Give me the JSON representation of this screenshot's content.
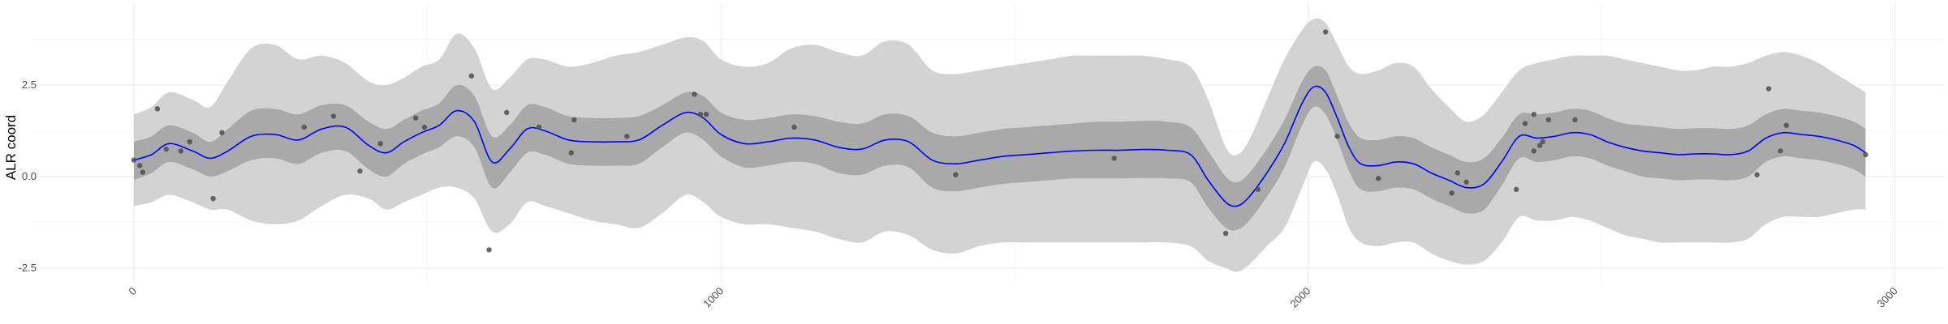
{
  "chart_data": {
    "type": "line",
    "title": "",
    "xlabel": "",
    "ylabel": "ALR coord",
    "xlim": [
      -10,
      3000
    ],
    "ylim": [
      -2.75,
      4.75
    ],
    "x_ticks": [
      0,
      1000,
      2000,
      3000
    ],
    "x_tick_labels": [
      "0",
      "1000",
      "2000",
      "3000"
    ],
    "y_ticks": [
      -2.5,
      0.0,
      2.5
    ],
    "y_tick_labels": [
      "-2.5",
      "0.0",
      "2.5"
    ],
    "grid": true,
    "legend": "none",
    "colors": {
      "mean_line": "#0000ff",
      "inner_band": "#a9a9a9",
      "outer_band": "#d3d3d3",
      "points": "#4d4d4d",
      "grid": "#ebebeb"
    },
    "series": [
      {
        "kind": "mean",
        "x": [
          0,
          30,
          60,
          100,
          130,
          160,
          200,
          240,
          280,
          320,
          360,
          400,
          430,
          460,
          490,
          520,
          550,
          580,
          610,
          640,
          670,
          700,
          740,
          780,
          820,
          860,
          900,
          940,
          970,
          1000,
          1040,
          1080,
          1120,
          1160,
          1200,
          1240,
          1280,
          1320,
          1360,
          1400,
          1440,
          1480,
          1520,
          1560,
          1600,
          1640,
          1680,
          1720,
          1760,
          1800,
          1830,
          1860,
          1880,
          1900,
          1930,
          1960,
          1990,
          2010,
          2030,
          2050,
          2070,
          2090,
          2120,
          2150,
          2180,
          2210,
          2240,
          2270,
          2300,
          2330,
          2360,
          2390,
          2420,
          2450,
          2480,
          2510,
          2540,
          2570,
          2600,
          2630,
          2660,
          2690,
          2720,
          2750,
          2780,
          2810,
          2840,
          2870,
          2900,
          2930,
          2950
        ],
        "y": [
          0.45,
          0.6,
          0.9,
          0.7,
          0.5,
          0.7,
          1.1,
          1.15,
          1.0,
          1.3,
          1.35,
          0.85,
          0.65,
          0.95,
          1.2,
          1.4,
          1.8,
          1.5,
          0.4,
          0.75,
          1.3,
          1.25,
          1.0,
          0.95,
          0.95,
          1.0,
          1.4,
          1.75,
          1.6,
          1.15,
          0.9,
          0.95,
          1.05,
          1.0,
          0.8,
          0.75,
          1.0,
          0.95,
          0.45,
          0.35,
          0.45,
          0.55,
          0.6,
          0.65,
          0.7,
          0.72,
          0.72,
          0.74,
          0.72,
          0.6,
          -0.1,
          -0.7,
          -0.8,
          -0.55,
          0.1,
          0.9,
          2.0,
          2.45,
          2.3,
          1.6,
          0.8,
          0.35,
          0.3,
          0.4,
          0.35,
          0.1,
          -0.1,
          -0.3,
          -0.2,
          0.4,
          1.1,
          1.05,
          1.1,
          1.2,
          1.15,
          0.95,
          0.8,
          0.7,
          0.65,
          0.6,
          0.62,
          0.62,
          0.6,
          0.7,
          1.05,
          1.2,
          1.15,
          1.1,
          1.0,
          0.85,
          0.65
        ]
      },
      {
        "kind": "inner_band",
        "x": [
          0,
          30,
          60,
          100,
          130,
          160,
          200,
          240,
          280,
          320,
          360,
          400,
          430,
          460,
          490,
          520,
          550,
          580,
          610,
          640,
          670,
          700,
          740,
          780,
          820,
          860,
          900,
          940,
          970,
          1000,
          1040,
          1080,
          1120,
          1160,
          1200,
          1240,
          1280,
          1320,
          1360,
          1400,
          1440,
          1480,
          1520,
          1560,
          1600,
          1640,
          1680,
          1720,
          1760,
          1800,
          1830,
          1860,
          1880,
          1900,
          1930,
          1960,
          1990,
          2010,
          2030,
          2050,
          2070,
          2090,
          2120,
          2150,
          2180,
          2210,
          2240,
          2270,
          2300,
          2330,
          2360,
          2390,
          2420,
          2450,
          2480,
          2510,
          2540,
          2570,
          2600,
          2630,
          2660,
          2690,
          2720,
          2750,
          2780,
          2810,
          2840,
          2870,
          2900,
          2930,
          2950
        ],
        "upper": [
          0.95,
          1.1,
          1.4,
          1.2,
          0.95,
          1.3,
          1.8,
          1.85,
          1.7,
          1.95,
          1.95,
          1.5,
          1.3,
          1.55,
          1.8,
          2.0,
          2.5,
          2.2,
          1.1,
          1.4,
          1.95,
          1.9,
          1.65,
          1.6,
          1.6,
          1.65,
          1.95,
          2.3,
          2.2,
          1.75,
          1.55,
          1.6,
          1.7,
          1.65,
          1.5,
          1.45,
          1.7,
          1.65,
          1.2,
          1.1,
          1.2,
          1.3,
          1.35,
          1.4,
          1.45,
          1.5,
          1.5,
          1.52,
          1.5,
          1.35,
          0.7,
          0.0,
          -0.15,
          0.1,
          0.75,
          1.55,
          2.6,
          3.0,
          2.9,
          2.2,
          1.45,
          1.05,
          1.0,
          1.1,
          1.05,
          0.8,
          0.6,
          0.4,
          0.5,
          1.05,
          1.7,
          1.7,
          1.75,
          1.85,
          1.8,
          1.6,
          1.45,
          1.4,
          1.35,
          1.3,
          1.32,
          1.32,
          1.3,
          1.4,
          1.7,
          1.85,
          1.8,
          1.75,
          1.65,
          1.5,
          1.3
        ],
        "lower": [
          -0.1,
          0.1,
          0.4,
          0.2,
          0.0,
          0.15,
          0.45,
          0.5,
          0.35,
          0.65,
          0.7,
          0.2,
          0.0,
          0.35,
          0.6,
          0.8,
          1.1,
          0.8,
          -0.3,
          0.1,
          0.65,
          0.6,
          0.35,
          0.3,
          0.3,
          0.35,
          0.8,
          1.2,
          1.0,
          0.55,
          0.25,
          0.3,
          0.4,
          0.35,
          0.1,
          0.05,
          0.3,
          0.25,
          -0.3,
          -0.4,
          -0.3,
          -0.2,
          -0.15,
          -0.1,
          -0.05,
          -0.05,
          -0.05,
          -0.04,
          -0.05,
          -0.15,
          -0.85,
          -1.4,
          -1.45,
          -1.2,
          -0.55,
          0.25,
          1.4,
          1.9,
          1.7,
          1.0,
          0.15,
          -0.35,
          -0.4,
          -0.3,
          -0.35,
          -0.6,
          -0.8,
          -1.0,
          -0.9,
          -0.25,
          0.5,
          0.4,
          0.45,
          0.55,
          0.5,
          0.3,
          0.15,
          0.0,
          -0.05,
          -0.1,
          -0.08,
          -0.08,
          -0.1,
          0.0,
          0.4,
          0.55,
          0.5,
          0.45,
          0.35,
          0.2,
          0.0
        ]
      },
      {
        "kind": "outer_band",
        "x": [
          0,
          30,
          60,
          100,
          130,
          160,
          200,
          240,
          280,
          320,
          360,
          400,
          430,
          460,
          490,
          520,
          550,
          580,
          610,
          640,
          670,
          700,
          740,
          780,
          820,
          860,
          900,
          940,
          970,
          1000,
          1040,
          1080,
          1120,
          1160,
          1200,
          1240,
          1280,
          1320,
          1360,
          1400,
          1440,
          1480,
          1520,
          1560,
          1600,
          1640,
          1680,
          1720,
          1760,
          1800,
          1830,
          1860,
          1880,
          1900,
          1930,
          1960,
          1990,
          2010,
          2030,
          2050,
          2070,
          2090,
          2120,
          2150,
          2180,
          2210,
          2240,
          2270,
          2300,
          2330,
          2360,
          2390,
          2420,
          2450,
          2480,
          2510,
          2540,
          2570,
          2600,
          2630,
          2660,
          2690,
          2720,
          2750,
          2780,
          2810,
          2840,
          2870,
          2900,
          2930,
          2950
        ],
        "upper": [
          1.7,
          1.9,
          2.3,
          2.1,
          1.9,
          2.6,
          3.5,
          3.6,
          3.2,
          3.3,
          3.1,
          2.6,
          2.5,
          2.7,
          3.0,
          3.2,
          3.9,
          3.5,
          2.4,
          2.7,
          3.2,
          3.2,
          3.0,
          3.1,
          3.3,
          3.4,
          3.6,
          3.8,
          3.7,
          3.2,
          3.0,
          3.1,
          3.5,
          3.6,
          3.4,
          3.3,
          3.7,
          3.6,
          2.9,
          2.8,
          2.9,
          3.0,
          3.1,
          3.2,
          3.3,
          3.3,
          3.3,
          3.3,
          3.2,
          3.0,
          2.1,
          0.8,
          0.6,
          1.0,
          2.1,
          3.2,
          4.0,
          4.3,
          4.2,
          3.6,
          3.0,
          2.8,
          2.9,
          3.1,
          3.0,
          2.4,
          1.9,
          1.5,
          1.7,
          2.3,
          2.9,
          3.1,
          3.2,
          3.3,
          3.3,
          3.3,
          3.2,
          3.1,
          3.0,
          2.9,
          2.9,
          3.0,
          3.0,
          3.1,
          3.3,
          3.4,
          3.3,
          3.1,
          2.8,
          2.5,
          2.3
        ],
        "lower": [
          -0.8,
          -0.7,
          -0.5,
          -0.7,
          -0.9,
          -0.9,
          -1.2,
          -1.3,
          -1.2,
          -0.8,
          -0.5,
          -0.6,
          -0.9,
          -0.7,
          -0.5,
          -0.3,
          -0.3,
          -0.6,
          -1.5,
          -1.3,
          -0.7,
          -0.8,
          -1.0,
          -1.2,
          -1.3,
          -1.4,
          -1.0,
          -0.5,
          -0.7,
          -1.1,
          -1.3,
          -1.3,
          -1.4,
          -1.5,
          -1.7,
          -1.8,
          -1.5,
          -1.6,
          -2.0,
          -2.1,
          -1.9,
          -1.8,
          -1.8,
          -1.8,
          -1.8,
          -1.8,
          -1.8,
          -1.8,
          -1.8,
          -1.9,
          -2.3,
          -2.5,
          -2.6,
          -2.4,
          -1.9,
          -1.4,
          -0.3,
          0.4,
          0.2,
          -0.5,
          -1.4,
          -1.8,
          -1.9,
          -1.8,
          -1.8,
          -2.1,
          -2.3,
          -2.4,
          -2.3,
          -1.8,
          -1.1,
          -1.2,
          -1.2,
          -1.1,
          -1.2,
          -1.4,
          -1.6,
          -1.7,
          -1.8,
          -1.8,
          -1.8,
          -1.8,
          -1.8,
          -1.7,
          -1.3,
          -1.1,
          -1.1,
          -1.1,
          -1.0,
          -0.9,
          -0.9
        ]
      },
      {
        "kind": "points",
        "x": [
          0,
          10,
          15,
          40,
          55,
          80,
          95,
          135,
          150,
          290,
          340,
          385,
          420,
          480,
          495,
          575,
          605,
          635,
          690,
          745,
          750,
          840,
          955,
          965,
          975,
          1125,
          1400,
          1670,
          1860,
          1915,
          2030,
          2050,
          2120,
          2245,
          2255,
          2270,
          2355,
          2370,
          2385,
          2385,
          2395,
          2400,
          2410,
          2455,
          2765,
          2785,
          2805,
          2815,
          2950
        ],
        "y": [
          0.45,
          0.3,
          0.12,
          1.85,
          0.75,
          0.7,
          0.95,
          -0.6,
          1.2,
          1.35,
          1.65,
          0.15,
          0.9,
          1.6,
          1.35,
          2.75,
          -2.0,
          1.75,
          1.35,
          0.65,
          1.55,
          1.1,
          2.25,
          1.7,
          1.7,
          1.35,
          0.05,
          0.5,
          -1.55,
          -0.35,
          3.95,
          1.1,
          -0.05,
          -0.45,
          0.1,
          -0.15,
          -0.35,
          1.45,
          1.7,
          0.7,
          0.85,
          0.95,
          1.55,
          1.55,
          0.05,
          2.4,
          0.7,
          1.4,
          0.6
        ]
      }
    ]
  }
}
